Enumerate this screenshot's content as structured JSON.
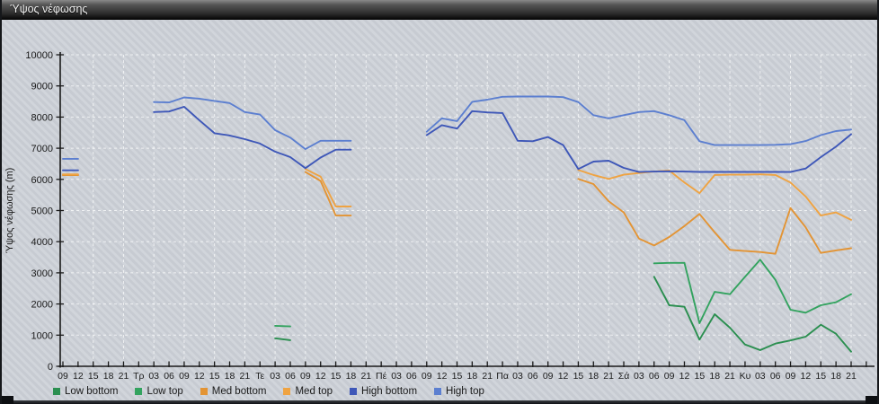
{
  "window": {
    "title": "Ύψος νέφωσης"
  },
  "chart_data": {
    "type": "line",
    "title": "Ύψος νέφωσης",
    "ylabel": "Ύψος νέφωσης (m)",
    "xlabel": "",
    "ylim": [
      0,
      10000
    ],
    "ytick_step": 1000,
    "grid": true,
    "legend_position": "bottom-left",
    "categories": [
      "09",
      "12",
      "15",
      "18",
      "21",
      "Τρ",
      "03",
      "06",
      "09",
      "12",
      "15",
      "18",
      "21",
      "Τε",
      "03",
      "06",
      "09",
      "12",
      "15",
      "18",
      "21",
      "Πέ",
      "03",
      "06",
      "09",
      "12",
      "15",
      "18",
      "21",
      "Πα",
      "03",
      "06",
      "09",
      "12",
      "15",
      "18",
      "21",
      "Σά",
      "03",
      "06",
      "09",
      "12",
      "15",
      "18",
      "21",
      "Κυ",
      "03",
      "06",
      "09",
      "12",
      "15",
      "18",
      "21"
    ],
    "series": [
      {
        "name": "Low bottom",
        "color": "#2b8f50",
        "values": [
          null,
          null,
          null,
          null,
          null,
          null,
          null,
          null,
          null,
          null,
          null,
          null,
          null,
          null,
          900,
          840,
          null,
          null,
          null,
          null,
          null,
          null,
          null,
          null,
          null,
          null,
          null,
          null,
          null,
          null,
          null,
          null,
          null,
          null,
          null,
          null,
          null,
          null,
          null,
          2873,
          1960,
          1911,
          856,
          1672,
          1240,
          700,
          519,
          730,
          830,
          950,
          1335,
          1046,
          470
        ]
      },
      {
        "name": "Low top",
        "color": "#33a35f",
        "values": [
          null,
          null,
          null,
          null,
          null,
          null,
          null,
          null,
          null,
          null,
          null,
          null,
          null,
          null,
          1300,
          1280,
          null,
          null,
          null,
          null,
          null,
          null,
          null,
          null,
          null,
          null,
          null,
          null,
          null,
          null,
          null,
          null,
          null,
          null,
          null,
          null,
          null,
          null,
          null,
          3305,
          3320,
          3320,
          1383,
          2390,
          2314,
          2870,
          3420,
          2776,
          1816,
          1720,
          1960,
          2055,
          2314
        ]
      },
      {
        "name": "Med bottom",
        "color": "#e39434",
        "values": [
          6135,
          6135,
          null,
          null,
          null,
          null,
          null,
          null,
          null,
          null,
          null,
          null,
          null,
          null,
          null,
          null,
          6235,
          5950,
          4840,
          4840,
          null,
          null,
          null,
          null,
          null,
          null,
          null,
          null,
          null,
          null,
          null,
          null,
          null,
          null,
          6015,
          5850,
          5300,
          4940,
          4100,
          3880,
          4150,
          4500,
          4890,
          4300,
          3737,
          3700,
          3670,
          3610,
          5080,
          4460,
          3640,
          3720,
          3790
        ]
      },
      {
        "name": "Med top",
        "color": "#efa342",
        "values": [
          6160,
          6160,
          null,
          null,
          null,
          null,
          null,
          null,
          null,
          null,
          null,
          null,
          null,
          null,
          null,
          null,
          6330,
          6090,
          5130,
          5130,
          null,
          null,
          null,
          null,
          null,
          null,
          null,
          null,
          null,
          null,
          null,
          null,
          null,
          null,
          6300,
          6140,
          6015,
          6150,
          6205,
          6250,
          6285,
          5900,
          5560,
          6140,
          6150,
          6150,
          6160,
          6140,
          5900,
          5450,
          4840,
          4940,
          4700
        ]
      },
      {
        "name": "High bottom",
        "color": "#3e57b8",
        "values": [
          6290,
          6290,
          null,
          null,
          null,
          null,
          8160,
          8180,
          8330,
          7900,
          7480,
          7410,
          7290,
          7150,
          6890,
          6715,
          6360,
          6700,
          6955,
          6955,
          null,
          null,
          null,
          null,
          7420,
          7740,
          7630,
          8190,
          8150,
          8130,
          7240,
          7225,
          7360,
          7100,
          6330,
          6570,
          6600,
          6370,
          6235,
          6250,
          6260,
          6250,
          6240,
          6240,
          6240,
          6240,
          6240,
          6240,
          6235,
          6350,
          6715,
          7050,
          7450
        ]
      },
      {
        "name": "High top",
        "color": "#5c7fd0",
        "values": [
          6660,
          6660,
          null,
          null,
          null,
          null,
          8480,
          8470,
          8630,
          8590,
          8520,
          8450,
          8160,
          8080,
          7580,
          7340,
          6970,
          7240,
          7240,
          7240,
          null,
          null,
          null,
          null,
          7530,
          7960,
          7870,
          8490,
          8560,
          8650,
          8660,
          8660,
          8660,
          8640,
          8480,
          8060,
          7960,
          8060,
          8160,
          8190,
          8060,
          7900,
          7225,
          7100,
          7100,
          7100,
          7100,
          7110,
          7130,
          7230,
          7420,
          7550,
          7600
        ]
      }
    ]
  },
  "style": {
    "grid_color": "#ffffff",
    "axis_color": "#1a1a1a"
  }
}
